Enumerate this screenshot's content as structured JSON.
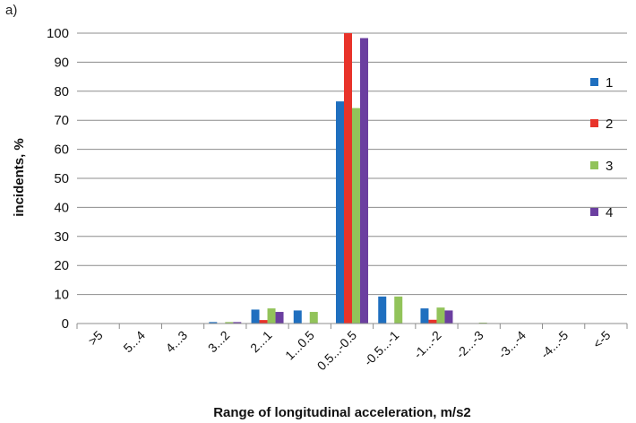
{
  "chart_data": {
    "panel_label": "a)",
    "type": "bar",
    "xlabel": "Range of longitudinal acceleration, m/s2",
    "ylabel": "incidents, %",
    "ylim": [
      0,
      100
    ],
    "yticks": [
      0,
      10,
      20,
      30,
      40,
      50,
      60,
      70,
      80,
      90,
      100
    ],
    "grid": true,
    "legend_position": "right",
    "categories": [
      ">5",
      "5...4",
      "4...3",
      "3...2",
      "2...1",
      "1...0.5",
      "0.5...-0.5",
      "-0.5...-1",
      "-1...-2",
      "-2...-3",
      "-3...-4",
      "-4...-5",
      "<-5"
    ],
    "series": [
      {
        "name": "1",
        "color": "#1f6fbf",
        "values": [
          0,
          0,
          0,
          0.5,
          4.8,
          4.5,
          76.5,
          9.3,
          5.2,
          0,
          0,
          0,
          0
        ]
      },
      {
        "name": "2",
        "color": "#e8332a",
        "values": [
          0,
          0,
          0,
          0,
          1.2,
          0,
          100,
          0,
          1.3,
          0,
          0,
          0,
          0
        ]
      },
      {
        "name": "3",
        "color": "#92c35a",
        "values": [
          0,
          0,
          0,
          0.5,
          5.2,
          4.0,
          74.2,
          9.3,
          5.5,
          0.3,
          0,
          0,
          0
        ]
      },
      {
        "name": "4",
        "color": "#6b3fa0",
        "values": [
          0,
          0,
          0,
          0.5,
          4.0,
          0,
          98.3,
          0,
          4.5,
          0,
          0,
          0,
          0
        ]
      }
    ]
  }
}
